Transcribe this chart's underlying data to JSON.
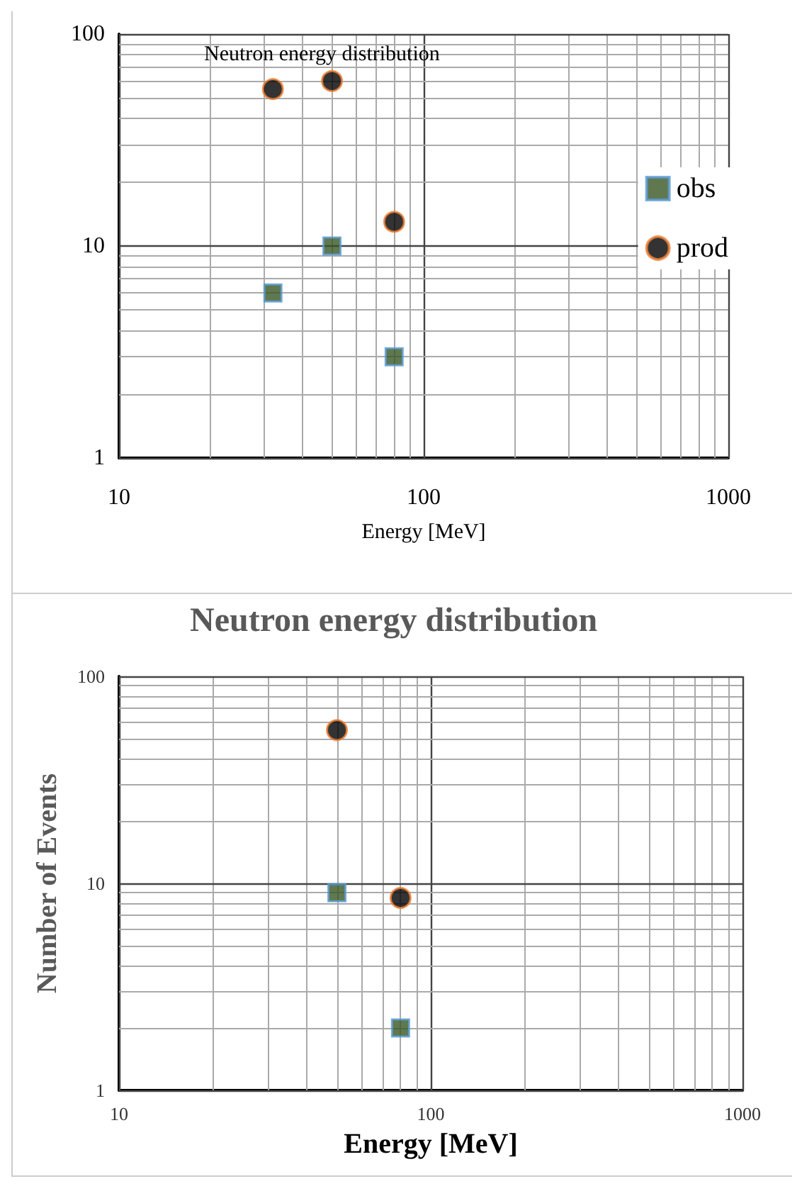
{
  "chart_data": [
    {
      "type": "scatter",
      "title": "Neutron energy distribution",
      "xlabel": "Energy [MeV]",
      "log": "xy",
      "grid": true,
      "legend": "right",
      "xlim": [
        10,
        1000
      ],
      "xticks": [
        10,
        {
          "value": 20,
          "label": null
        },
        {
          "value": 30,
          "label": null
        },
        {
          "value": 40,
          "label": null
        },
        {
          "value": 50,
          "label": null
        },
        {
          "value": 60,
          "label": null
        },
        {
          "value": 70,
          "label": null
        },
        {
          "value": 80,
          "label": null
        },
        {
          "value": 90,
          "label": null
        },
        100,
        {
          "value": 200,
          "label": null
        },
        {
          "value": 300,
          "label": null
        },
        {
          "value": 400,
          "label": null
        },
        {
          "value": 500,
          "label": null
        },
        {
          "value": 600,
          "label": null
        },
        {
          "value": 700,
          "label": null
        },
        {
          "value": 800,
          "label": null
        },
        {
          "value": 900,
          "label": null
        },
        1000
      ],
      "ylim": [
        1,
        100
      ],
      "yticks": [
        1,
        {
          "value": 2,
          "label": null
        },
        {
          "value": 3,
          "label": null
        },
        {
          "value": 4,
          "label": null
        },
        {
          "value": 5,
          "label": null
        },
        {
          "value": 6,
          "label": null
        },
        {
          "value": 7,
          "label": null
        },
        {
          "value": 8,
          "label": null
        },
        {
          "value": 9,
          "label": null
        },
        10,
        {
          "value": 20,
          "label": null
        },
        {
          "value": 30,
          "label": null
        },
        {
          "value": 40,
          "label": null
        },
        {
          "value": 50,
          "label": null
        },
        {
          "value": 60,
          "label": null
        },
        {
          "value": 70,
          "label": null
        },
        {
          "value": 80,
          "label": null
        },
        {
          "value": 90,
          "label": null
        },
        100
      ],
      "series": [
        {
          "name": "obs",
          "color": "#375623",
          "marker": "square",
          "x": [
            32,
            50,
            80
          ],
          "values": [
            6,
            10,
            3
          ]
        },
        {
          "name": "prod",
          "color": "#000000",
          "marker": "circle",
          "x": [
            32,
            50,
            80
          ],
          "values": [
            55,
            60,
            13
          ]
        }
      ]
    },
    {
      "type": "scatter",
      "title": "Neutron energy distribution",
      "xlabel": "Energy [MeV]",
      "ylabel": "Number of Events",
      "log": "xy",
      "grid": true,
      "xlim": [
        10,
        1000
      ],
      "xticks": [
        10,
        {
          "value": 20,
          "label": null
        },
        {
          "value": 30,
          "label": null
        },
        {
          "value": 40,
          "label": null
        },
        {
          "value": 50,
          "label": null
        },
        {
          "value": 60,
          "label": null
        },
        {
          "value": 70,
          "label": null
        },
        {
          "value": 80,
          "label": null
        },
        {
          "value": 90,
          "label": null
        },
        100,
        {
          "value": 200,
          "label": null
        },
        {
          "value": 300,
          "label": null
        },
        {
          "value": 400,
          "label": null
        },
        {
          "value": 500,
          "label": null
        },
        {
          "value": 600,
          "label": null
        },
        {
          "value": 700,
          "label": null
        },
        {
          "value": 800,
          "label": null
        },
        {
          "value": 900,
          "label": null
        },
        1000
      ],
      "ylim": [
        1,
        100
      ],
      "yticks": [
        1,
        {
          "value": 2,
          "label": null
        },
        {
          "value": 3,
          "label": null
        },
        {
          "value": 4,
          "label": null
        },
        {
          "value": 5,
          "label": null
        },
        {
          "value": 6,
          "label": null
        },
        {
          "value": 7,
          "label": null
        },
        {
          "value": 8,
          "label": null
        },
        {
          "value": 9,
          "label": null
        },
        10,
        {
          "value": 20,
          "label": null
        },
        {
          "value": 30,
          "label": null
        },
        {
          "value": 40,
          "label": null
        },
        {
          "value": 50,
          "label": null
        },
        {
          "value": 60,
          "label": null
        },
        {
          "value": 70,
          "label": null
        },
        {
          "value": 80,
          "label": null
        },
        {
          "value": 90,
          "label": null
        },
        100
      ],
      "series": [
        {
          "color": "#375623",
          "marker": "square",
          "x": [
            50,
            80
          ],
          "values": [
            9,
            2
          ]
        },
        {
          "color": "#000000",
          "marker": "circle",
          "x": [
            50,
            80
          ],
          "values": [
            55,
            8.5
          ]
        }
      ]
    }
  ]
}
